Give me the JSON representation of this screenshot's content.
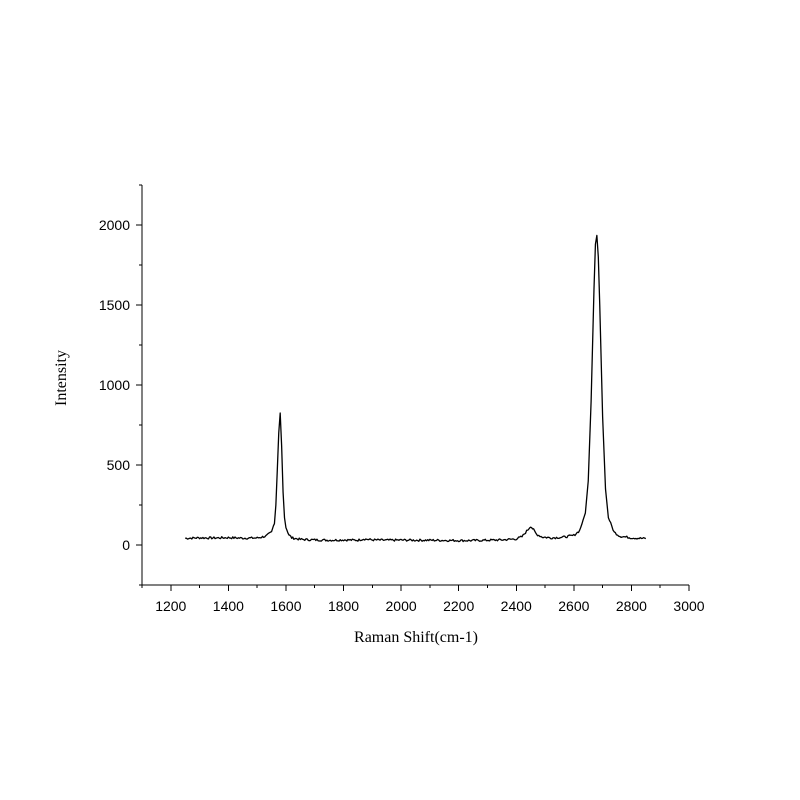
{
  "chart_data": {
    "type": "line",
    "title": "",
    "xlabel": "Raman Shift(cm-1)",
    "ylabel": "Intensity",
    "xlim": [
      1100,
      3000
    ],
    "ylim": [
      -250,
      2250
    ],
    "xticks": [
      1200,
      1400,
      1600,
      1800,
      2000,
      2200,
      2400,
      2600,
      2800,
      3000
    ],
    "yticks": [
      0,
      500,
      1000,
      1500,
      2000
    ],
    "grid": false,
    "legend": "none",
    "line_color": "#000000",
    "series": [
      {
        "x": [
          1250,
          1300,
          1350,
          1400,
          1450,
          1500,
          1530,
          1550,
          1560,
          1565,
          1570,
          1575,
          1580,
          1585,
          1590,
          1595,
          1600,
          1610,
          1620,
          1650,
          1700,
          1750,
          1800,
          1850,
          1870,
          1900,
          1950,
          2000,
          2050,
          2100,
          2150,
          2200,
          2250,
          2300,
          2350,
          2400,
          2420,
          2440,
          2450,
          2460,
          2470,
          2490,
          2520,
          2560,
          2600,
          2620,
          2640,
          2650,
          2660,
          2670,
          2675,
          2680,
          2685,
          2690,
          2700,
          2710,
          2720,
          2740,
          2760,
          2800,
          2850
        ],
        "y": [
          42,
          45,
          44,
          46,
          43,
          44,
          55,
          80,
          140,
          250,
          470,
          700,
          825,
          620,
          330,
          170,
          110,
          65,
          45,
          35,
          32,
          30,
          32,
          30,
          38,
          32,
          30,
          31,
          30,
          30,
          29,
          28,
          28,
          30,
          32,
          38,
          52,
          95,
          118,
          95,
          68,
          50,
          45,
          48,
          60,
          90,
          200,
          400,
          900,
          1600,
          1880,
          1935,
          1800,
          1500,
          800,
          350,
          170,
          80,
          55,
          45,
          40
        ]
      }
    ]
  }
}
